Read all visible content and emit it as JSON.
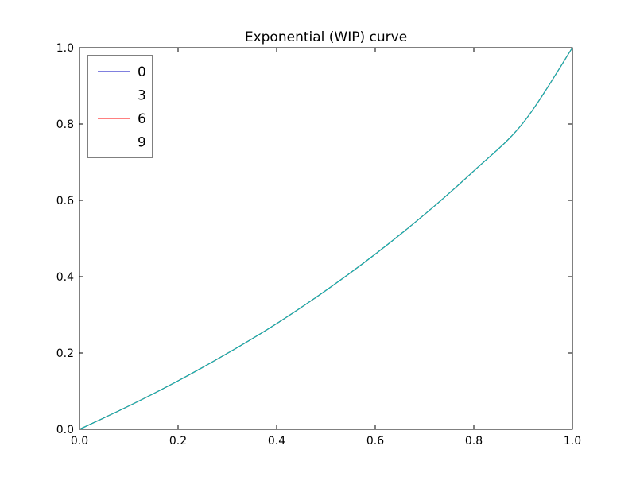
{
  "chart_data": {
    "type": "line",
    "title": "Exponential (WIP) curve",
    "xlabel": "",
    "ylabel": "",
    "xlim": [
      0.0,
      1.0
    ],
    "ylim": [
      0.0,
      1.0
    ],
    "xticks": [
      0.0,
      0.2,
      0.4,
      0.6,
      0.8,
      1.0
    ],
    "yticks": [
      0.0,
      0.2,
      0.4,
      0.6,
      0.8,
      1.0
    ],
    "xtick_labels": [
      "0.0",
      "0.2",
      "0.4",
      "0.6",
      "0.8",
      "1.0"
    ],
    "ytick_labels": [
      "0.0",
      "0.2",
      "0.4",
      "0.6",
      "0.8",
      "1.0"
    ],
    "grid": false,
    "legend_position": "upper-left",
    "x": [
      0.0,
      0.1,
      0.2,
      0.3,
      0.4,
      0.5,
      0.6,
      0.7,
      0.8,
      0.9,
      1.0
    ],
    "series": [
      {
        "name": "0",
        "color": "#0000bf",
        "values": [
          0.0,
          0.061,
          0.127,
          0.199,
          0.277,
          0.364,
          0.459,
          0.563,
          0.677,
          0.803,
          1.0
        ]
      },
      {
        "name": "3",
        "color": "#008000",
        "values": [
          0.0,
          0.061,
          0.127,
          0.199,
          0.277,
          0.364,
          0.459,
          0.563,
          0.677,
          0.803,
          1.0
        ]
      },
      {
        "name": "6",
        "color": "#ff0000",
        "values": [
          0.0,
          0.061,
          0.127,
          0.199,
          0.277,
          0.364,
          0.459,
          0.563,
          0.677,
          0.803,
          1.0
        ]
      },
      {
        "name": "9",
        "color": "#00bfbf",
        "values": [
          0.0,
          0.061,
          0.127,
          0.199,
          0.277,
          0.364,
          0.459,
          0.563,
          0.677,
          0.803,
          1.0
        ]
      }
    ]
  }
}
